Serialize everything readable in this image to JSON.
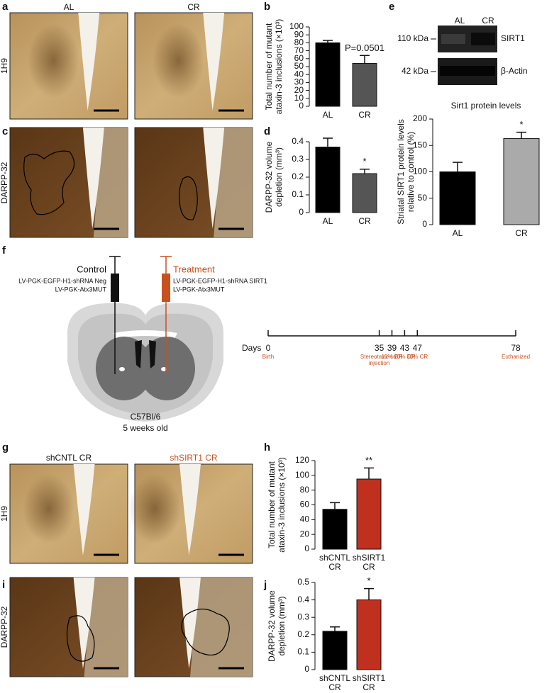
{
  "panel_labels": [
    "a",
    "b",
    "c",
    "d",
    "e",
    "f",
    "g",
    "h",
    "i",
    "j"
  ],
  "micrographs": {
    "a": {
      "columns": [
        "AL",
        "CR"
      ],
      "row": "1H9"
    },
    "c": {
      "row": "DARPP-32"
    },
    "g": {
      "columns": [
        "shCNTL CR",
        "shSIRT1 CR"
      ],
      "row": "1H9"
    },
    "i": {
      "row": "DARPP-32"
    }
  },
  "western_blot": {
    "lanes": [
      "AL",
      "CR"
    ],
    "bands": [
      {
        "size": "110 kDa",
        "protein": "SIRT1"
      },
      {
        "size": "42 kDa",
        "protein": "β-Actin"
      }
    ]
  },
  "schematic": {
    "control": {
      "title": "Control",
      "vectors": [
        "LV-PGK-EGFP-H1-shRNA Neg",
        "LV-PGK-Atx3MUT"
      ]
    },
    "treatment": {
      "title": "Treatment",
      "vectors": [
        "LV-PGK-EGFP-H1-shRNA SIRT1",
        "LV-PGK-Atx3MUT"
      ]
    },
    "mouse": [
      "C57Bl/6",
      "5 weeks old"
    ]
  },
  "timeline": {
    "label": "Days",
    "events": [
      {
        "day": 0,
        "label": "Birth"
      },
      {
        "day": 35,
        "label": "Stereotaxic co-injection"
      },
      {
        "day": 39,
        "label": "10% CR"
      },
      {
        "day": 43,
        "label": "20% CR"
      },
      {
        "day": 47,
        "label": "30% CR"
      },
      {
        "day": 78,
        "label": "Euthanized"
      }
    ]
  },
  "chart_data": [
    {
      "type": "bar",
      "categories": [
        "AL",
        "CR"
      ],
      "values": [
        80,
        54
      ],
      "errors": [
        3,
        10
      ],
      "colors": [
        "#000000",
        "#555555"
      ],
      "ylabel": [
        "Total number of mutant",
        "ataxin-3 inclusions (×10³)"
      ],
      "ylim": [
        0,
        100
      ],
      "yticks": [
        0,
        10,
        20,
        30,
        40,
        50,
        60,
        70,
        80,
        90,
        100
      ],
      "annotation": "P=0.0501"
    },
    {
      "type": "bar",
      "categories": [
        "AL",
        "CR"
      ],
      "values": [
        0.37,
        0.22
      ],
      "errors": [
        0.05,
        0.025
      ],
      "colors": [
        "#000000",
        "#555555"
      ],
      "ylabel": [
        "DARPP-32 volume",
        "depletion (mm³)"
      ],
      "ylim": [
        0,
        0.4
      ],
      "yticks": [
        0,
        0.1,
        0.2,
        0.3,
        0.4
      ],
      "annotation": "*"
    },
    {
      "type": "bar",
      "title": "Sirt1 protein levels",
      "categories": [
        "AL",
        "CR"
      ],
      "values": [
        100,
        163
      ],
      "errors": [
        18,
        12
      ],
      "colors": [
        "#000000",
        "#aaaaaa"
      ],
      "ylabel": [
        "Striatal SIRT1 protein levels",
        "relative to control (%)"
      ],
      "ylim": [
        0,
        200
      ],
      "yticks": [
        0,
        50,
        100,
        150,
        200
      ],
      "annotation": "*"
    },
    {
      "type": "bar",
      "categories": [
        "shCNTL CR",
        "shSIRT1 CR"
      ],
      "values": [
        54,
        95
      ],
      "errors": [
        9,
        15
      ],
      "colors": [
        "#000000",
        "#c0301f"
      ],
      "ylabel": [
        "Total number of mutant",
        "ataxin-3 inclusions (×10³)"
      ],
      "ylim": [
        0,
        120
      ],
      "yticks": [
        0,
        20,
        40,
        60,
        80,
        100,
        120
      ],
      "annotation": "**"
    },
    {
      "type": "bar",
      "categories": [
        "shCNTL CR",
        "shSIRT1 CR"
      ],
      "values": [
        0.22,
        0.4
      ],
      "errors": [
        0.025,
        0.065
      ],
      "colors": [
        "#000000",
        "#c0301f"
      ],
      "ylabel": [
        "DARPP-32 volume",
        "depletion (mm³)"
      ],
      "ylim": [
        0,
        0.5
      ],
      "yticks": [
        0,
        0.1,
        0.2,
        0.3,
        0.4,
        0.5
      ],
      "annotation": "*"
    }
  ]
}
